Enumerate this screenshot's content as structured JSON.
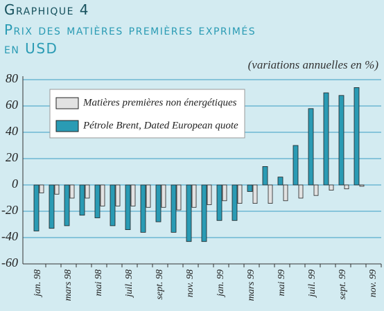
{
  "chart_data": {
    "type": "bar",
    "header": "Graphique 4",
    "title": "Prix des matières premières exprimés en USD",
    "subtitle": "(variations annuelles en %)",
    "categories": [
      "jan. 98",
      null,
      "mars 98",
      null,
      "mai 98",
      null,
      "juil. 98",
      null,
      "sept. 98",
      null,
      "nov. 98",
      null,
      "jan. 99",
      null,
      "mars 99",
      null,
      "mai 99",
      null,
      "juil. 99",
      null,
      "sept. 99",
      null,
      "nov. 99"
    ],
    "series": [
      {
        "name": "Matières premières non énergétiques",
        "color": "#e2e2e2",
        "values": [
          -6,
          -7,
          -10,
          -10,
          -16,
          -16,
          -16,
          -17,
          -17,
          -19,
          -17,
          -15,
          -12,
          -14,
          -14,
          -14,
          -12,
          -10,
          -8,
          -4,
          -3,
          -1,
          null
        ]
      },
      {
        "name": "Pétrole Brent, Dated European quote",
        "color": "#2a9bb4",
        "values": [
          -35,
          -33,
          -31,
          -23,
          -25,
          -31,
          -34,
          -36,
          -28,
          -36,
          -43,
          -43,
          -27,
          -27,
          -5,
          14,
          6,
          30,
          58,
          70,
          68,
          74,
          null
        ]
      }
    ],
    "ylim": [
      -60,
      80
    ],
    "yticks": [
      -60,
      -40,
      -20,
      0,
      20,
      40,
      60,
      80
    ],
    "grid": true,
    "legend": "top-left"
  }
}
